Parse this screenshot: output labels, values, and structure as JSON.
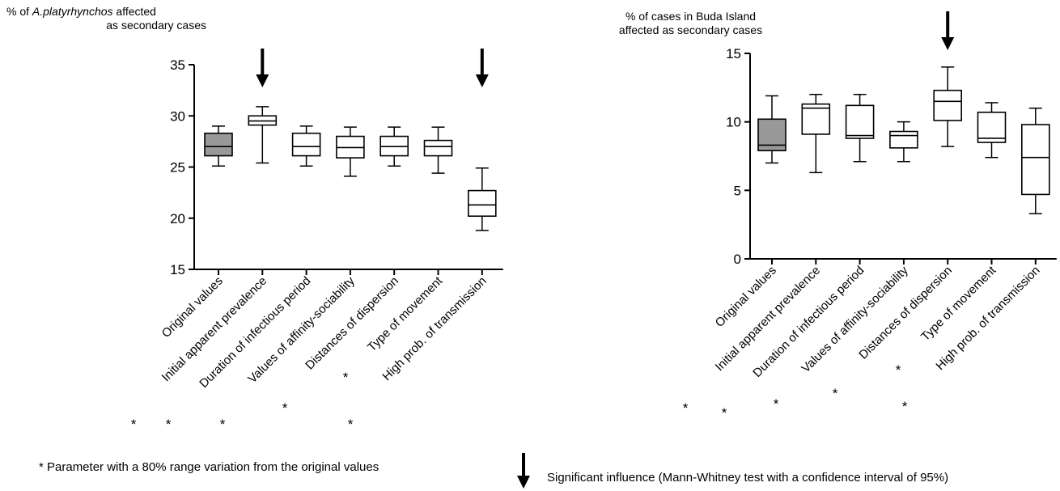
{
  "chart_data": [
    {
      "type": "box",
      "ylabel_line1_prefix": "% of ",
      "ylabel_line1_italic": "A.platyrhynchos",
      "ylabel_line1_suffix": " affected",
      "ylabel_line2": "as secondary cases",
      "ylim": [
        15,
        35
      ],
      "yticks": [
        "15",
        "20",
        "25",
        "30",
        "35"
      ],
      "categories": [
        "Original values",
        "Initial apparent prevalence",
        "Duration of infectious period",
        "Values of affinity-sociability",
        "Distances of dispersion",
        "Type of movement",
        "High prob. of transmission"
      ],
      "boxes": [
        {
          "min": 25.1,
          "q1": 26.1,
          "median": 27.0,
          "q3": 28.3,
          "max": 29.0,
          "shaded": true,
          "significant": false
        },
        {
          "min": 25.4,
          "q1": 29.1,
          "median": 29.5,
          "q3": 30.0,
          "max": 30.9,
          "shaded": false,
          "significant": true
        },
        {
          "min": 25.1,
          "q1": 26.1,
          "median": 27.0,
          "q3": 28.3,
          "max": 29.0,
          "shaded": false,
          "significant": false
        },
        {
          "min": 24.1,
          "q1": 25.9,
          "median": 26.9,
          "q3": 28.0,
          "max": 28.9,
          "shaded": false,
          "significant": false
        },
        {
          "min": 25.1,
          "q1": 26.1,
          "median": 27.0,
          "q3": 28.0,
          "max": 28.9,
          "shaded": false,
          "significant": false
        },
        {
          "min": 24.4,
          "q1": 26.1,
          "median": 27.0,
          "q3": 27.6,
          "max": 28.9,
          "shaded": false,
          "significant": false
        },
        {
          "min": 18.8,
          "q1": 20.2,
          "median": 21.3,
          "q3": 22.7,
          "max": 24.9,
          "shaded": false,
          "significant": true
        }
      ],
      "asterisks": [
        "*",
        "*",
        "*",
        "*",
        "*",
        "*"
      ]
    },
    {
      "type": "box",
      "ylabel_line1": "% of cases in Buda Island",
      "ylabel_line2": "affected as secondary cases",
      "ylim": [
        0,
        15
      ],
      "yticks": [
        "0",
        "5",
        "10",
        "15"
      ],
      "categories": [
        "Original values",
        "Initial apparent prevalence",
        "Duration of infectious period",
        "Values of affinity-sociability",
        "Distances of dispersion",
        "Type of movement",
        "High prob. of transmission"
      ],
      "boxes": [
        {
          "min": 7.0,
          "q1": 7.9,
          "median": 8.3,
          "q3": 10.2,
          "max": 11.9,
          "shaded": true,
          "significant": false
        },
        {
          "min": 6.3,
          "q1": 9.1,
          "median": 11.0,
          "q3": 11.3,
          "max": 12.0,
          "shaded": false,
          "significant": false
        },
        {
          "min": 7.1,
          "q1": 8.8,
          "median": 9.0,
          "q3": 11.2,
          "max": 12.0,
          "shaded": false,
          "significant": false
        },
        {
          "min": 7.1,
          "q1": 8.1,
          "median": 9.0,
          "q3": 9.3,
          "max": 10.0,
          "shaded": false,
          "significant": false
        },
        {
          "min": 8.2,
          "q1": 10.1,
          "median": 11.5,
          "q3": 12.3,
          "max": 14.0,
          "shaded": false,
          "significant": true
        },
        {
          "min": 7.4,
          "q1": 8.5,
          "median": 8.8,
          "q3": 10.7,
          "max": 11.4,
          "shaded": false,
          "significant": false
        },
        {
          "min": 3.3,
          "q1": 4.7,
          "median": 7.4,
          "q3": 9.8,
          "max": 11.0,
          "shaded": false,
          "significant": false
        }
      ],
      "asterisks": [
        "*",
        "*",
        "*",
        "*",
        "*",
        "*"
      ]
    }
  ],
  "legend": {
    "asterisk_note": "* Parameter with a 80% range variation from the original values",
    "arrow_note": "Significant influence (Mann-Whitney test with a confidence interval of 95%)"
  },
  "colors": {
    "box_shaded": "#999999",
    "line": "#000000"
  }
}
